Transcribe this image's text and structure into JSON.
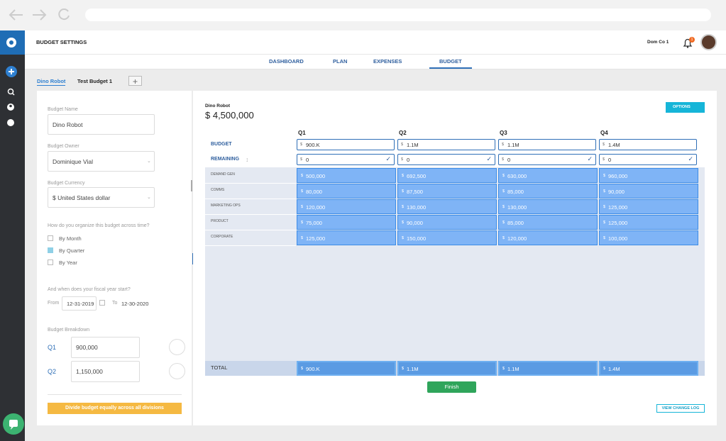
{
  "header": {
    "title": "BUDGET SETTINGS",
    "company": "Dom Co 1",
    "notification_count": "1"
  },
  "nav": [
    "DASHBOARD",
    "PLAN",
    "EXPENSES",
    "BUDGET"
  ],
  "budget_tabs": [
    "Dino Robot",
    "Test Budget 1"
  ],
  "form": {
    "fields": [
      {
        "label": "Budget Name",
        "value": "Dino Robot"
      },
      {
        "label": "Budget Owner",
        "value": "Dominique Vial"
      },
      {
        "label": "Budget Currency",
        "value": "$ United States dollar"
      }
    ],
    "organize_question": "How do you organize this budget across time?",
    "organize_options": [
      "By Month",
      "By Quarter",
      "By Year"
    ],
    "fiscal_question": "And when does your fiscal year start?",
    "from_label": "From",
    "from_value": "12-31-2019",
    "to_label": "To",
    "to_value": "12-30-2020",
    "breakdown_label": "Budget Breakdown",
    "breakdown": [
      {
        "label": "Q1",
        "value": "900,000"
      },
      {
        "label": "Q2",
        "value": "1,150,000"
      }
    ],
    "divide_button": "Divide budget equally across all divisions"
  },
  "main": {
    "budget_name": "Dino Robot",
    "budget_total": "$ 4,500,000",
    "options_button": "OPTIONS",
    "currency_symbol": "$",
    "quarters": [
      "Q1",
      "Q2",
      "Q3",
      "Q4"
    ],
    "budget": {
      "label": "BUDGET",
      "values": [
        "900.K",
        "1.1M",
        "1.1M",
        "1.4M"
      ]
    },
    "remaining": {
      "label": "REMAINING",
      "values": [
        "0",
        "0",
        "0",
        "0"
      ]
    },
    "divisions": [
      {
        "name": "DEMAND GEN",
        "values": [
          "500,000",
          "692,500",
          "630,000",
          "960,000"
        ]
      },
      {
        "name": "COMMS",
        "values": [
          "80,000",
          "87,500",
          "85,000",
          "90,000"
        ]
      },
      {
        "name": "MARKETING OPS",
        "values": [
          "120,000",
          "130,000",
          "130,000",
          "125,000"
        ]
      },
      {
        "name": "PRODUCT",
        "values": [
          "75,000",
          "90,000",
          "85,000",
          "125,000"
        ]
      },
      {
        "name": "CORPORATE",
        "values": [
          "125,000",
          "150,000",
          "120,000",
          "100,000"
        ]
      }
    ],
    "total": {
      "label": "TOTAL",
      "values": [
        "900.K",
        "1.1M",
        "1.1M",
        "1.4M"
      ]
    },
    "finish_button": "Finish",
    "change_log_button": "VIEW CHANGE LOG"
  }
}
